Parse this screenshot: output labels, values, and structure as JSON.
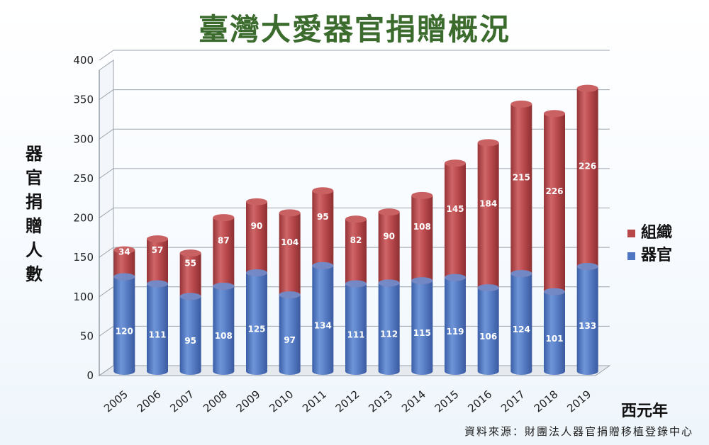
{
  "chart_data": {
    "type": "bar",
    "stacked": true,
    "title": "臺灣大愛器官捐贈概況",
    "ylabel": "器官捐贈人數",
    "xlabel": "西元年",
    "ylim": [
      0,
      400
    ],
    "yticks": [
      0,
      50,
      100,
      150,
      200,
      250,
      300,
      350,
      400
    ],
    "grid": true,
    "legend": "right",
    "categories": [
      "2005",
      "2006",
      "2007",
      "2008",
      "2009",
      "2010",
      "2011",
      "2012",
      "2013",
      "2014",
      "2015",
      "2016",
      "2017",
      "2018",
      "2019"
    ],
    "series": [
      {
        "name": "器官",
        "color": "#4f76c2",
        "values": [
          120,
          111,
          95,
          108,
          125,
          97,
          134,
          111,
          112,
          115,
          119,
          106,
          124,
          101,
          133
        ]
      },
      {
        "name": "組織",
        "color": "#b8474a",
        "values": [
          34,
          57,
          55,
          87,
          90,
          104,
          95,
          82,
          90,
          108,
          145,
          184,
          215,
          226,
          226
        ]
      }
    ],
    "source": "資料來源：財團法人器官捐贈移植登錄中心"
  }
}
